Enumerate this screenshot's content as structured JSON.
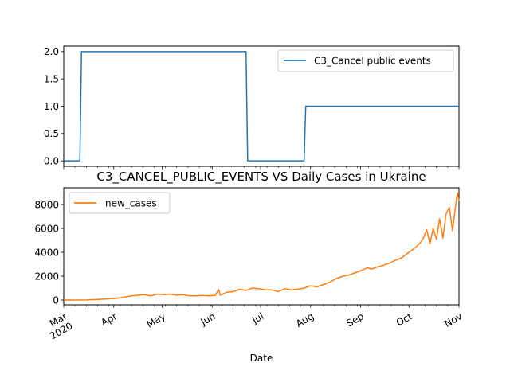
{
  "chart_data": [
    {
      "type": "line",
      "title": "",
      "xlabel": "",
      "ylabel": "",
      "x_range": [
        "2020-03-01",
        "2020-11-01"
      ],
      "ylim": [
        -0.1,
        2.1
      ],
      "y_ticks": [
        "0.0",
        "0.5",
        "1.0",
        "1.5",
        "2.0"
      ],
      "legend_position": "top-right",
      "grid": false,
      "series": [
        {
          "name": "C3_Cancel public events",
          "color": "#1f77b4",
          "x": [
            "2020-03-01",
            "2020-03-11",
            "2020-03-12",
            "2020-06-22",
            "2020-06-23",
            "2020-07-28",
            "2020-07-29",
            "2020-11-01"
          ],
          "values": [
            0,
            0,
            2,
            2,
            0,
            0,
            1,
            1
          ]
        }
      ]
    },
    {
      "type": "line",
      "title": "C3_CANCEL_PUBLIC_EVENTS VS Daily Cases in Ukraine",
      "xlabel": "Date",
      "ylabel": "",
      "x_range": [
        "2020-03-01",
        "2020-11-01"
      ],
      "ylim": [
        -400,
        9400
      ],
      "y_ticks": [
        "0",
        "2000",
        "4000",
        "6000",
        "8000"
      ],
      "x_tick_labels": [
        {
          "date": "2020-03-01",
          "label": "Mar",
          "sublabel": "2020"
        },
        {
          "date": "2020-04-01",
          "label": "Apr"
        },
        {
          "date": "2020-05-01",
          "label": "May"
        },
        {
          "date": "2020-06-01",
          "label": "Jun"
        },
        {
          "date": "2020-07-01",
          "label": "Jul"
        },
        {
          "date": "2020-08-01",
          "label": "Aug"
        },
        {
          "date": "2020-09-01",
          "label": "Sep"
        },
        {
          "date": "2020-10-01",
          "label": "Oct"
        },
        {
          "date": "2020-11-01",
          "label": "Nov"
        }
      ],
      "legend_position": "top-left",
      "grid": false,
      "series": [
        {
          "name": "new_cases",
          "color": "#ff7f0e",
          "x": [
            "2020-03-01",
            "2020-03-15",
            "2020-03-22",
            "2020-03-29",
            "2020-04-03",
            "2020-04-08",
            "2020-04-12",
            "2020-04-16",
            "2020-04-20",
            "2020-04-24",
            "2020-04-28",
            "2020-05-02",
            "2020-05-06",
            "2020-05-10",
            "2020-05-14",
            "2020-05-18",
            "2020-05-22",
            "2020-05-26",
            "2020-05-30",
            "2020-06-03",
            "2020-06-05",
            "2020-06-06",
            "2020-06-10",
            "2020-06-14",
            "2020-06-18",
            "2020-06-22",
            "2020-06-26",
            "2020-06-30",
            "2020-07-04",
            "2020-07-08",
            "2020-07-12",
            "2020-07-16",
            "2020-07-20",
            "2020-07-24",
            "2020-07-28",
            "2020-08-01",
            "2020-08-05",
            "2020-08-09",
            "2020-08-13",
            "2020-08-17",
            "2020-08-21",
            "2020-08-25",
            "2020-08-29",
            "2020-09-02",
            "2020-09-05",
            "2020-09-08",
            "2020-09-12",
            "2020-09-15",
            "2020-09-19",
            "2020-09-22",
            "2020-09-26",
            "2020-09-29",
            "2020-10-02",
            "2020-10-05",
            "2020-10-08",
            "2020-10-10",
            "2020-10-12",
            "2020-10-14",
            "2020-10-16",
            "2020-10-18",
            "2020-10-20",
            "2020-10-22",
            "2020-10-24",
            "2020-10-26",
            "2020-10-28",
            "2020-10-30",
            "2020-10-31",
            "2020-11-01"
          ],
          "values": [
            0,
            5,
            50,
            100,
            150,
            250,
            350,
            400,
            450,
            350,
            500,
            450,
            500,
            400,
            450,
            350,
            350,
            380,
            350,
            400,
            900,
            400,
            650,
            700,
            900,
            800,
            1000,
            950,
            850,
            850,
            700,
            950,
            850,
            900,
            1000,
            1200,
            1100,
            1300,
            1500,
            1800,
            2000,
            2100,
            2300,
            2500,
            2700,
            2600,
            2800,
            2900,
            3100,
            3300,
            3500,
            3800,
            4100,
            4400,
            4800,
            5200,
            5900,
            4700,
            6000,
            5100,
            6800,
            5200,
            7200,
            7800,
            5800,
            8000,
            9000,
            8300
          ]
        }
      ]
    }
  ]
}
